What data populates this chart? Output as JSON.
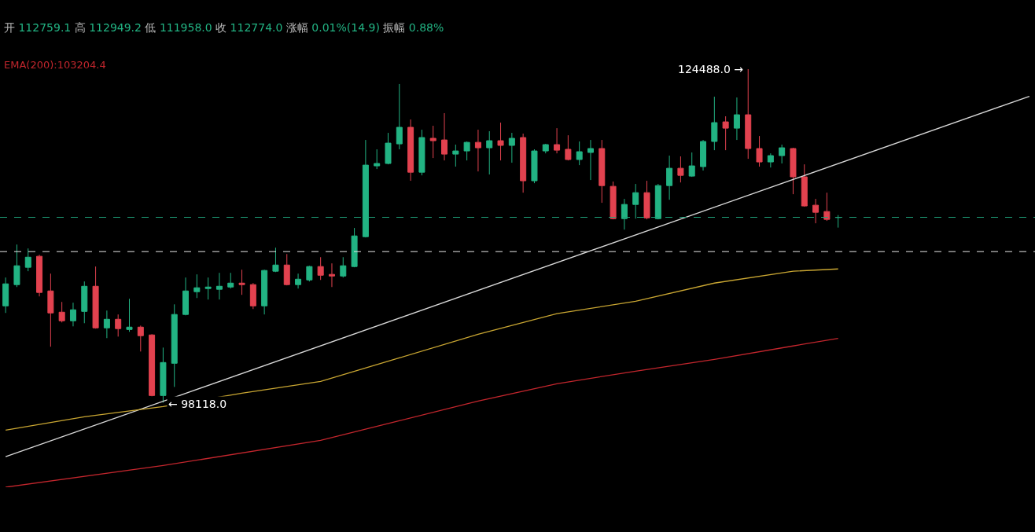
{
  "chart_data": {
    "type": "candlestick",
    "tick_labels": false,
    "grid": false,
    "categories": [
      null,
      null,
      null,
      null,
      null,
      null,
      null,
      null,
      null,
      null,
      null,
      null,
      null,
      null,
      null,
      null,
      null,
      null,
      null,
      null,
      null,
      null,
      null,
      null,
      null,
      null,
      null,
      null,
      null,
      null,
      null,
      null,
      null,
      null,
      null,
      null,
      null,
      null,
      null,
      null,
      null,
      null,
      null,
      null,
      null,
      null,
      null,
      null,
      null,
      null,
      null,
      null,
      null,
      null,
      null,
      null,
      null,
      null,
      null,
      null,
      null,
      null,
      null,
      null,
      null,
      null,
      null,
      null,
      null,
      null,
      null,
      null,
      null,
      null,
      null,
      null,
      null,
      null,
      null,
      null,
      null,
      null,
      null,
      null,
      null,
      null,
      null,
      null,
      null,
      null,
      null,
      null
    ],
    "colors": [
      "#22b383",
      "#22b383",
      "#22b383",
      "#e2424f",
      "#e2424f",
      "#e2424f",
      "#22b383",
      "#22b383",
      "#e2424f",
      "#22b383",
      "#e2424f",
      "#22b383",
      "#e2424f",
      "#e2424f",
      "#22b383",
      "#22b383",
      "#22b383",
      "#22b383",
      "#22b383",
      "#22b383",
      "#22b383",
      "#e2424f",
      "#e2424f",
      "#22b383",
      "#22b383",
      "#e2424f",
      "#22b383",
      "#22b383",
      "#e2424f",
      "#e2424f",
      "#22b383",
      "#22b383",
      "#22b383",
      "#22b383",
      "#22b383",
      "#22b383",
      "#e2424f",
      "#22b383",
      "#e2424f",
      "#e2424f",
      "#22b383",
      "#22b383",
      "#e2424f",
      "#22b383",
      "#e2424f",
      "#22b383",
      "#e2424f",
      "#22b383",
      "#22b383",
      "#e2424f",
      "#e2424f",
      "#22b383",
      "#22b383",
      "#e2424f",
      "#e2424f",
      "#22b383",
      "#22b383",
      "#e2424f",
      "#22b383",
      "#22b383",
      "#e2424f",
      "#22b383",
      "#22b383",
      "#22b383",
      "#e2424f",
      "#22b383",
      "#e2424f",
      "#e2424f",
      "#22b383",
      "#22b383",
      "#e2424f",
      "#e2424f",
      "#e2424f",
      "#e2424f",
      "#22b383",
      null,
      null,
      null,
      null,
      null,
      null,
      null,
      null,
      null,
      null,
      null,
      null,
      null,
      null,
      null,
      null,
      null
    ],
    "ohlc": [
      [
        105770,
        108010,
        105210,
        107510
      ],
      [
        107450,
        110620,
        107260,
        108940
      ],
      [
        108820,
        110310,
        108510,
        109620
      ],
      [
        109690,
        109810,
        106520,
        106830
      ],
      [
        106950,
        108320,
        102540,
        105210
      ],
      [
        105270,
        106080,
        104460,
        104590
      ],
      [
        104590,
        106020,
        104150,
        105460
      ],
      [
        105330,
        107700,
        104400,
        107320
      ],
      [
        107320,
        108880,
        103970,
        104030
      ],
      [
        104030,
        105400,
        103220,
        104710
      ],
      [
        104710,
        105090,
        103340,
        103970
      ],
      [
        103900,
        106330,
        103720,
        104090
      ],
      [
        104090,
        104210,
        102160,
        103410
      ],
      [
        103470,
        103530,
        98620,
        98680
      ],
      [
        98680,
        102470,
        98118,
        101290
      ],
      [
        101230,
        105890,
        99360,
        105090
      ],
      [
        105090,
        108010,
        105020,
        106950
      ],
      [
        106890,
        108260,
        106390,
        107200
      ],
      [
        107140,
        108010,
        106270,
        107260
      ],
      [
        107080,
        108380,
        106270,
        107320
      ],
      [
        107260,
        108380,
        107140,
        107570
      ],
      [
        107570,
        108630,
        106640,
        107450
      ],
      [
        107450,
        107570,
        105520,
        105770
      ],
      [
        105770,
        108630,
        105090,
        108570
      ],
      [
        108510,
        110370,
        108440,
        109000
      ],
      [
        109000,
        109870,
        107390,
        107450
      ],
      [
        107450,
        108320,
        107140,
        107880
      ],
      [
        107820,
        108940,
        107700,
        108880
      ],
      [
        108880,
        109620,
        107820,
        108190
      ],
      [
        108260,
        109130,
        107260,
        108130
      ],
      [
        108130,
        109620,
        108010,
        108940
      ],
      [
        108880,
        111930,
        108820,
        111300
      ],
      [
        111240,
        118890,
        111180,
        116900
      ],
      [
        116840,
        118150,
        116590,
        117030
      ],
      [
        117030,
        119450,
        116960,
        118640
      ],
      [
        118580,
        123310,
        118150,
        119890
      ],
      [
        119890,
        120510,
        115660,
        116340
      ],
      [
        116340,
        119700,
        116090,
        119080
      ],
      [
        119020,
        120010,
        117460,
        118830
      ],
      [
        118890,
        121010,
        117270,
        117770
      ],
      [
        117770,
        118520,
        116780,
        118020
      ],
      [
        118020,
        118770,
        117270,
        118700
      ],
      [
        118700,
        119700,
        116400,
        118270
      ],
      [
        118270,
        119580,
        116160,
        118830
      ],
      [
        118830,
        120260,
        117270,
        118460
      ],
      [
        118460,
        119450,
        117090,
        119020
      ],
      [
        119080,
        119390,
        114720,
        115660
      ],
      [
        115660,
        118150,
        115470,
        118020
      ],
      [
        118020,
        118580,
        117830,
        118520
      ],
      [
        118520,
        119820,
        117830,
        118080
      ],
      [
        118150,
        119260,
        117270,
        117340
      ],
      [
        117340,
        118770,
        116900,
        117960
      ],
      [
        117900,
        118890,
        115720,
        118210
      ],
      [
        118210,
        118890,
        113920,
        115280
      ],
      [
        115220,
        115600,
        112610,
        112670
      ],
      [
        112670,
        114230,
        111800,
        113790
      ],
      [
        113790,
        115410,
        112670,
        114720
      ],
      [
        114720,
        115660,
        112610,
        112730
      ],
      [
        112670,
        115410,
        112610,
        115280
      ],
      [
        115280,
        117650,
        114160,
        116650
      ],
      [
        116650,
        117590,
        115530,
        116090
      ],
      [
        116030,
        117900,
        115970,
        116840
      ],
      [
        116780,
        118890,
        116470,
        118770
      ],
      [
        118770,
        122310,
        118080,
        120260
      ],
      [
        120320,
        120760,
        118080,
        119820
      ],
      [
        119820,
        122250,
        118890,
        120880
      ],
      [
        120880,
        124488,
        117400,
        118210
      ],
      [
        118210,
        119200,
        116780,
        117150
      ],
      [
        117150,
        117830,
        116710,
        117650
      ],
      [
        117650,
        118520,
        117030,
        118270
      ],
      [
        118210,
        118270,
        114600,
        115970
      ],
      [
        115970,
        116960,
        113610,
        113670
      ],
      [
        113730,
        114230,
        112300,
        113170
      ],
      [
        113230,
        114720,
        112490,
        112610
      ],
      [
        112759.1,
        112949.2,
        111958.0,
        112774.0
      ],
      null,
      null,
      null,
      null,
      null,
      null,
      null,
      null,
      null,
      null,
      null,
      null,
      null,
      null,
      null,
      null,
      null
    ],
    "series": [
      {
        "type": "line",
        "color": "#d8d8d8",
        "values": [
          93840,
          null,
          null,
          null,
          null,
          null,
          null,
          null,
          null,
          null,
          null,
          null,
          null,
          null,
          null,
          null,
          null,
          null,
          null,
          null,
          null,
          null,
          null,
          null,
          null,
          null,
          null,
          null,
          null,
          null,
          null,
          null,
          null,
          null,
          null,
          null,
          null,
          null,
          null,
          null,
          null,
          null,
          null,
          null,
          null,
          null,
          null,
          null,
          null,
          null,
          null,
          null,
          null,
          null,
          null,
          null,
          null,
          null,
          null,
          null,
          null,
          null,
          null,
          null,
          null,
          null,
          null,
          null,
          null,
          null,
          null,
          null,
          null,
          null,
          null,
          null,
          null,
          null,
          null,
          null,
          null,
          null,
          null,
          null,
          null,
          null,
          null,
          null,
          null,
          null,
          null,
          122340
        ]
      },
      {
        "type": "line",
        "color": "#c9a632",
        "values": [
          95940,
          null,
          null,
          null,
          null,
          null,
          null,
          97000,
          null,
          null,
          null,
          null,
          null,
          null,
          97810,
          null,
          null,
          null,
          null,
          null,
          null,
          98870,
          null,
          null,
          null,
          null,
          null,
          null,
          99800,
          null,
          null,
          null,
          null,
          null,
          null,
          101660,
          null,
          null,
          null,
          null,
          null,
          null,
          103530,
          null,
          null,
          null,
          null,
          null,
          null,
          105150,
          null,
          null,
          null,
          null,
          null,
          null,
          106140,
          null,
          null,
          null,
          null,
          null,
          null,
          107570,
          null,
          null,
          null,
          null,
          null,
          null,
          108510,
          null,
          null,
          null,
          108690,
          null,
          null,
          null,
          null,
          null,
          null,
          null,
          null,
          null,
          null,
          null,
          null,
          null,
          null,
          null,
          null,
          null
        ]
      },
      {
        "type": "line",
        "name": "EMA(200):103204.4",
        "color": "#c3262d",
        "values": [
          91430,
          null,
          null,
          null,
          null,
          null,
          null,
          null,
          null,
          null,
          null,
          null,
          null,
          null,
          93140,
          null,
          null,
          null,
          null,
          null,
          null,
          null,
          null,
          null,
          null,
          null,
          null,
          null,
          95130,
          null,
          null,
          null,
          null,
          null,
          null,
          96690,
          null,
          null,
          null,
          null,
          null,
          null,
          98240,
          null,
          null,
          null,
          null,
          null,
          null,
          99610,
          null,
          null,
          null,
          null,
          null,
          null,
          100610,
          null,
          null,
          null,
          null,
          null,
          null,
          101540,
          null,
          null,
          null,
          null,
          null,
          null,
          102600,
          null,
          null,
          null,
          103204.4,
          null,
          null,
          null,
          null,
          null,
          null,
          null,
          null,
          null,
          null,
          null,
          null,
          null,
          null,
          null,
          null,
          null
        ]
      }
    ],
    "ref_lines": [
      {
        "axis": "y",
        "value": 112774.0,
        "color": "#1fa37a",
        "line_style": "dashed"
      },
      {
        "axis": "y",
        "value": 110060,
        "color": "#e6e6e6",
        "line_style": "dashed"
      }
    ],
    "annotations": [
      "开 112759.1 高 112949.2 低 111958.0 收 112774.0 涨幅 0.01%(14.9) 振幅 0.88%",
      "124488.0 →",
      "← 98118.0"
    ]
  }
}
